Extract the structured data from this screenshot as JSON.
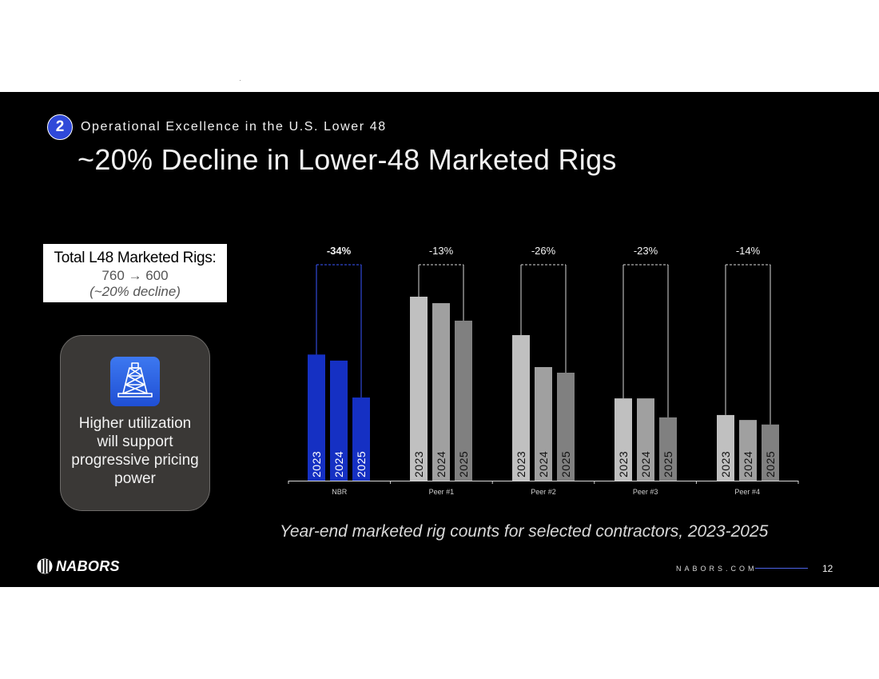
{
  "slide": {
    "section_number": "2",
    "section_title": "Operational Excellence in the U.S. Lower 48",
    "title": "~20% Decline in Lower-48 Marketed Rigs",
    "page_number": "12"
  },
  "total_box": {
    "heading": "Total L48 Marketed Rigs:",
    "value": "760 → 600",
    "pct": "(~20% decline)"
  },
  "card": {
    "icon": "oil-rig-icon",
    "text": "Higher utilization will support progressive pricing power"
  },
  "caption": "Year-end marketed rig counts for selected contractors, 2023-2025",
  "footer": {
    "logo_text": "NABORS",
    "site": "NABORS.COM"
  },
  "colors": {
    "nbr_bar": "#1530c3",
    "peer_2023": "#c0c0c0",
    "peer_2024": "#a0a0a0",
    "peer_2025": "#808080",
    "accent": "#2f49d9"
  },
  "chart_data": {
    "type": "bar",
    "title": "",
    "xlabel": "",
    "ylabel": "",
    "ylim": [
      0,
      100
    ],
    "categories": [
      "NBR",
      "Peer #1",
      "Peer #2",
      "Peer #3",
      "Peer #4"
    ],
    "years": [
      "2023",
      "2024",
      "2025"
    ],
    "series": [
      {
        "name": "2023",
        "values": [
          58.4,
          85.2,
          67.4,
          38.1,
          30.4
        ]
      },
      {
        "name": "2024",
        "values": [
          55.6,
          82.2,
          52.6,
          38.1,
          28.1
        ]
      },
      {
        "name": "2025",
        "values": [
          38.5,
          74.1,
          50.0,
          29.3,
          26.0
        ]
      }
    ],
    "changes": [
      "-34%",
      "-13%",
      "-26%",
      "-23%",
      "-14%"
    ]
  }
}
